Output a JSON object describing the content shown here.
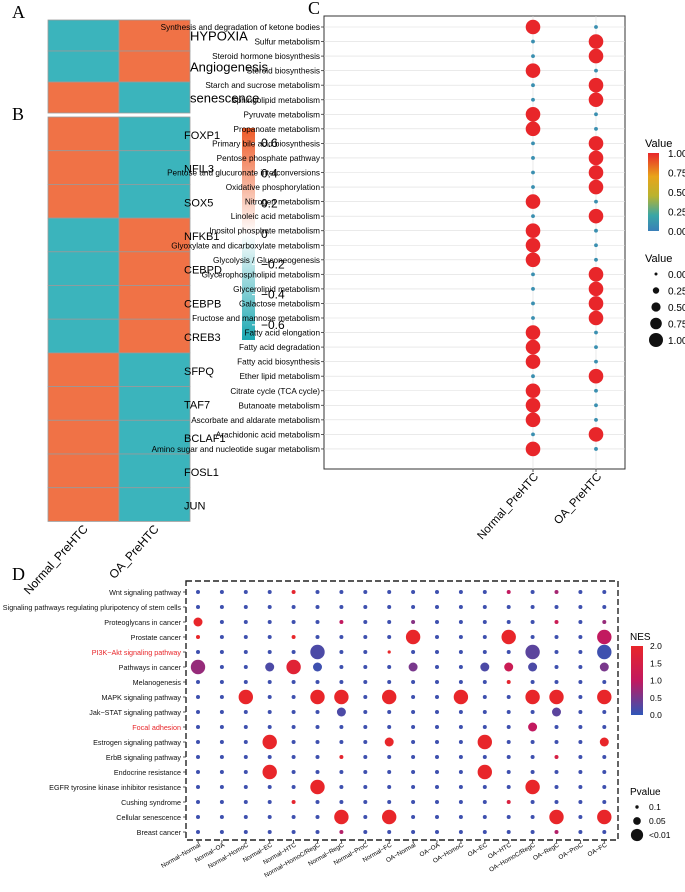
{
  "panel_labels": {
    "a": "A",
    "b": "B",
    "c": "C",
    "d": "D"
  },
  "colors": {
    "heat_low": "#1aa7b1",
    "heat_mid": "#ffffff",
    "heat_high": "#ee5a27",
    "dot_high": "#e8262a",
    "dot_low": "#3a8fb0",
    "nes_low": "#2f56b8",
    "nes_mid": "#c2195f",
    "nes_high": "#e8262a",
    "grid": "#dddddd"
  },
  "chart_data": [
    {
      "id": "A",
      "type": "heatmap",
      "columns": [
        "Normal_PreHTC",
        "OA_PreHTC"
      ],
      "rows": [
        "HYPOXIA",
        "Angiogenesis",
        "senescence"
      ],
      "values": [
        [
          -0.6,
          0.6
        ],
        [
          -0.6,
          0.6
        ],
        [
          0.6,
          -0.6
        ]
      ]
    },
    {
      "id": "B",
      "type": "heatmap",
      "columns": [
        "Normal_PreHTC",
        "OA_PreHTC"
      ],
      "rows": [
        "FOXP1",
        "NFIL3",
        "SOX5",
        "NFKB1",
        "CEBPD",
        "CEBPB",
        "CREB3",
        "SFPQ",
        "TAF7",
        "BCLAF1",
        "FOSL1",
        "JUN"
      ],
      "values": [
        [
          0.6,
          -0.6
        ],
        [
          0.6,
          -0.6
        ],
        [
          0.6,
          -0.6
        ],
        [
          -0.6,
          0.6
        ],
        [
          -0.6,
          0.6
        ],
        [
          -0.6,
          0.6
        ],
        [
          -0.6,
          0.6
        ],
        [
          0.6,
          -0.6
        ],
        [
          0.6,
          -0.6
        ],
        [
          0.6,
          -0.6
        ],
        [
          0.6,
          -0.6
        ],
        [
          0.6,
          -0.6
        ]
      ],
      "colorbar": {
        "ticks": [
          "0.6",
          "0.4",
          "0.2",
          "0",
          "−0.2",
          "−0.4",
          "−0.6"
        ],
        "tick_values": [
          0.6,
          0.4,
          0.2,
          0,
          -0.2,
          -0.4,
          -0.6
        ],
        "range": [
          -0.7,
          0.7
        ]
      }
    },
    {
      "id": "C",
      "type": "scatter",
      "x_categories": [
        "Normal_PreHTC",
        "OA_PreHTC"
      ],
      "y_categories": [
        "Synthesis and degradation of ketone bodies",
        "Sulfur metabolism",
        "Steroid hormone biosynthesis",
        "Steroid biosynthesis",
        "Starch and sucrose metabolism",
        "Sphingolipid metabolism",
        "Pyruvate metabolism",
        "Propanoate metabolism",
        "Primary bile acid biosynthesis",
        "Pentose phosphate pathway",
        "Pentose and glucuronate interconversions",
        "Oxidative phosphorylation",
        "Nitrogen metabolism",
        "Linoleic acid metabolism",
        "Inositol phosphate metabolism",
        "Glyoxylate and dicarboxylate metabolism",
        "Glycolysis / Gluconeogenesis",
        "Glycerophospholipid metabolism",
        "Glycerolipid metabolism",
        "Galactose metabolism",
        "Fructose and mannose metabolism",
        "Fatty acid elongation",
        "Fatty acid degradation",
        "Fatty acid biosynthesis",
        "Ether lipid metabolism",
        "Citrate cycle (TCA cycle)",
        "Butanoate metabolism",
        "Ascorbate and aldarate metabolism",
        "Arachidonic acid metabolism",
        "Amino sugar and nucleotide sugar metabolism"
      ],
      "high_column": [
        0,
        1,
        1,
        0,
        1,
        1,
        0,
        0,
        1,
        1,
        1,
        1,
        0,
        1,
        0,
        0,
        0,
        1,
        1,
        1,
        1,
        0,
        0,
        0,
        1,
        0,
        0,
        0,
        1,
        0
      ],
      "value_high": 1.0,
      "value_low": 0.0,
      "legend_color": {
        "title": "Value",
        "ticks": [
          "1.00",
          "0.75",
          "0.50",
          "0.25",
          "0.00"
        ]
      },
      "legend_size": {
        "title": "Value",
        "ticks": [
          "0.00",
          "0.25",
          "0.50",
          "0.75",
          "1.00"
        ]
      }
    },
    {
      "id": "D",
      "type": "scatter",
      "x_categories": [
        "Normal−Normal",
        "Normal−OA",
        "Normal−HomoC",
        "Normal−EC",
        "Normal−HTC",
        "Normal−HomoC/RegC",
        "Normal−RegC",
        "Normal−ProC",
        "Normal−FC",
        "OA−Normal",
        "OA−OA",
        "OA−HomoC",
        "OA−EC",
        "OA−HTC",
        "OA−HomoC/RegC",
        "OA−RegC",
        "OA−ProC",
        "OA−FC"
      ],
      "y_categories": [
        "Wnt signaling pathway",
        "Signaling pathways regulating pluripotency of stem cells",
        "Proteoglycans in cancer",
        "Prostate cancer",
        "PI3K−Akt signaling pathway",
        "Pathways in cancer",
        "Melanogenesis",
        "MAPK signaling pathway",
        "Jak−STAT signaling pathway",
        "Focal adhesion",
        "Estrogen signaling pathway",
        "ErbB signaling pathway",
        "Endocrine resistance",
        "EGFR tyrosine kinase inhibitor resistance",
        "Cushing syndrome",
        "Cellular senescence",
        "Breast cancer"
      ],
      "highlighted_rows": [
        "PI3K−Akt signaling pathway",
        "Focal adhesion"
      ],
      "points": [
        {
          "row": 0,
          "col": 4,
          "nes": 1.9,
          "p": "small"
        },
        {
          "row": 0,
          "col": 13,
          "nes": 1.0,
          "p": "small"
        },
        {
          "row": 0,
          "col": 15,
          "nes": 0.8,
          "p": "small"
        },
        {
          "row": 2,
          "col": 0,
          "nes": 2.0,
          "p": "mid"
        },
        {
          "row": 2,
          "col": 6,
          "nes": 1.0,
          "p": "small"
        },
        {
          "row": 2,
          "col": 9,
          "nes": 0.6,
          "p": "small"
        },
        {
          "row": 2,
          "col": 15,
          "nes": 1.2,
          "p": "small"
        },
        {
          "row": 2,
          "col": 17,
          "nes": 0.7,
          "p": "small"
        },
        {
          "row": 3,
          "col": 0,
          "nes": 2.0,
          "p": "small"
        },
        {
          "row": 3,
          "col": 4,
          "nes": 2.0,
          "p": "small"
        },
        {
          "row": 3,
          "col": 9,
          "nes": 2.0,
          "p": "large"
        },
        {
          "row": 3,
          "col": 13,
          "nes": 2.0,
          "p": "large"
        },
        {
          "row": 3,
          "col": 17,
          "nes": 1.0,
          "p": "large"
        },
        {
          "row": 4,
          "col": 5,
          "nes": 0.2,
          "p": "large"
        },
        {
          "row": 4,
          "col": 8,
          "nes": 2.0,
          "p": "tiny"
        },
        {
          "row": 4,
          "col": 14,
          "nes": 0.3,
          "p": "large"
        },
        {
          "row": 4,
          "col": 17,
          "nes": 0.1,
          "p": "large"
        },
        {
          "row": 5,
          "col": 0,
          "nes": 0.7,
          "p": "large"
        },
        {
          "row": 5,
          "col": 3,
          "nes": 0.2,
          "p": "mid"
        },
        {
          "row": 5,
          "col": 4,
          "nes": 1.8,
          "p": "large"
        },
        {
          "row": 5,
          "col": 5,
          "nes": 0.1,
          "p": "mid"
        },
        {
          "row": 5,
          "col": 9,
          "nes": 0.5,
          "p": "mid"
        },
        {
          "row": 5,
          "col": 12,
          "nes": 0.2,
          "p": "mid"
        },
        {
          "row": 5,
          "col": 13,
          "nes": 1.2,
          "p": "mid"
        },
        {
          "row": 5,
          "col": 14,
          "nes": 0.2,
          "p": "mid"
        },
        {
          "row": 5,
          "col": 17,
          "nes": 0.5,
          "p": "mid"
        },
        {
          "row": 6,
          "col": 13,
          "nes": 1.9,
          "p": "small"
        },
        {
          "row": 7,
          "col": 2,
          "nes": 2.0,
          "p": "large"
        },
        {
          "row": 7,
          "col": 5,
          "nes": 2.0,
          "p": "large"
        },
        {
          "row": 7,
          "col": 6,
          "nes": 2.0,
          "p": "large"
        },
        {
          "row": 7,
          "col": 8,
          "nes": 2.0,
          "p": "large"
        },
        {
          "row": 7,
          "col": 11,
          "nes": 2.0,
          "p": "large"
        },
        {
          "row": 7,
          "col": 14,
          "nes": 2.0,
          "p": "large"
        },
        {
          "row": 7,
          "col": 15,
          "nes": 2.0,
          "p": "large"
        },
        {
          "row": 7,
          "col": 17,
          "nes": 2.0,
          "p": "large"
        },
        {
          "row": 8,
          "col": 6,
          "nes": 0.2,
          "p": "mid"
        },
        {
          "row": 8,
          "col": 15,
          "nes": 0.3,
          "p": "mid"
        },
        {
          "row": 9,
          "col": 14,
          "nes": 1.0,
          "p": "mid"
        },
        {
          "row": 10,
          "col": 3,
          "nes": 2.0,
          "p": "large"
        },
        {
          "row": 10,
          "col": 8,
          "nes": 2.0,
          "p": "mid"
        },
        {
          "row": 10,
          "col": 12,
          "nes": 2.0,
          "p": "large"
        },
        {
          "row": 10,
          "col": 17,
          "nes": 2.0,
          "p": "mid"
        },
        {
          "row": 11,
          "col": 6,
          "nes": 1.9,
          "p": "small"
        },
        {
          "row": 11,
          "col": 15,
          "nes": 1.5,
          "p": "small"
        },
        {
          "row": 12,
          "col": 3,
          "nes": 2.0,
          "p": "large"
        },
        {
          "row": 12,
          "col": 12,
          "nes": 2.0,
          "p": "large"
        },
        {
          "row": 13,
          "col": 5,
          "nes": 2.0,
          "p": "large"
        },
        {
          "row": 13,
          "col": 14,
          "nes": 2.0,
          "p": "large"
        },
        {
          "row": 14,
          "col": 4,
          "nes": 1.9,
          "p": "small"
        },
        {
          "row": 14,
          "col": 13,
          "nes": 1.6,
          "p": "small"
        },
        {
          "row": 15,
          "col": 6,
          "nes": 2.0,
          "p": "large"
        },
        {
          "row": 15,
          "col": 8,
          "nes": 2.0,
          "p": "large"
        },
        {
          "row": 15,
          "col": 15,
          "nes": 2.0,
          "p": "large"
        },
        {
          "row": 15,
          "col": 17,
          "nes": 2.0,
          "p": "large"
        },
        {
          "row": 16,
          "col": 6,
          "nes": 0.9,
          "p": "small"
        },
        {
          "row": 16,
          "col": 15,
          "nes": 0.9,
          "p": "small"
        }
      ],
      "default_point": {
        "nes": 0.1,
        "p": "small"
      },
      "legend_nes": {
        "title": "NES",
        "ticks": [
          "2.0",
          "1.5",
          "1.0",
          "0.5",
          "0.0"
        ],
        "tick_values": [
          2.0,
          1.5,
          1.0,
          0.5,
          0.0
        ]
      },
      "legend_p": {
        "title": "Pvalue",
        "labels": [
          "0.1",
          "0.05",
          "<0.01"
        ],
        "keys": [
          "small",
          "mid",
          "large"
        ]
      }
    }
  ]
}
